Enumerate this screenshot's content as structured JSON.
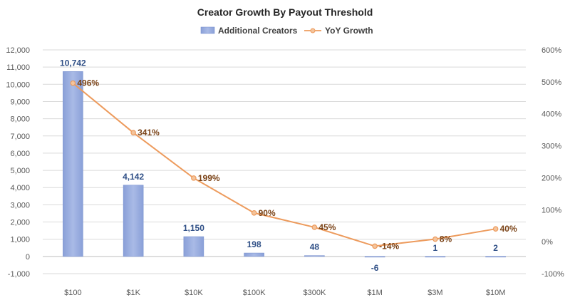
{
  "chart_data": {
    "type": "bar",
    "title": "Creator Growth By Payout Threshold",
    "categories": [
      "$100",
      "$1K",
      "$10K",
      "$100K",
      "$300K",
      "$1M",
      "$3M",
      "$10M"
    ],
    "series": [
      {
        "name": "Additional Creators",
        "type": "bar",
        "axis": "left",
        "values": [
          10742,
          4142,
          1150,
          198,
          48,
          -6,
          1,
          2
        ],
        "labels": [
          "10,742",
          "4,142",
          "1,150",
          "198",
          "48",
          "-6",
          "1",
          "2"
        ]
      },
      {
        "name": "YoY Growth",
        "type": "line",
        "axis": "right",
        "values": [
          496,
          341,
          199,
          90,
          45,
          -14,
          8,
          40
        ],
        "labels": [
          "496%",
          "341%",
          "199%",
          "90%",
          "45%",
          "-14%",
          "8%",
          "40%"
        ]
      }
    ],
    "left_axis": {
      "min": -1000,
      "max": 12000,
      "step": 1000,
      "tick_labels": [
        "-1,000",
        "0",
        "1,000",
        "2,000",
        "3,000",
        "4,000",
        "5,000",
        "6,000",
        "7,000",
        "8,000",
        "9,000",
        "10,000",
        "11,000",
        "12,000"
      ]
    },
    "right_axis": {
      "min": -100,
      "max": 600,
      "step": 100,
      "tick_labels": [
        "-100%",
        "0%",
        "100%",
        "200%",
        "300%",
        "400%",
        "500%",
        "600%"
      ]
    },
    "xlabel": "",
    "ylabel": "",
    "grid": true,
    "legend_position": "top-center",
    "colors": {
      "bar_fill": "#97abdf",
      "bar_stroke": "#7b93d0",
      "line": "#ed9b5d",
      "marker_fill": "#f4c49c",
      "bar_label": "#2f4f86",
      "line_label": "#7a4216",
      "axis_text": "#595959",
      "grid": "#d9d9d9",
      "title": "#262626"
    }
  }
}
